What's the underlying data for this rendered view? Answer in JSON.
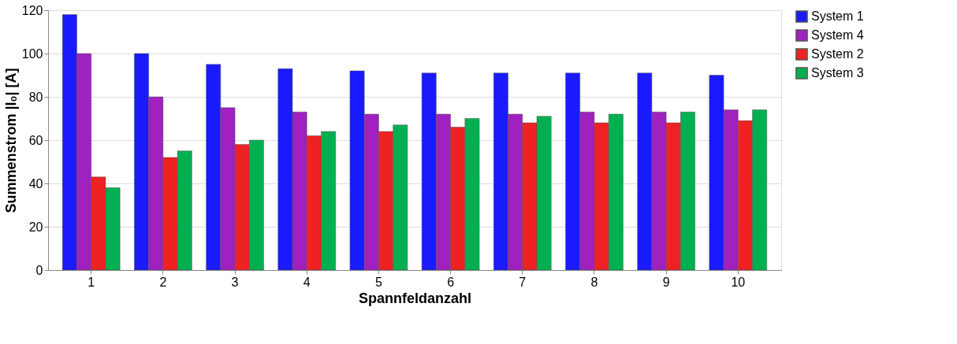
{
  "chart_data": {
    "type": "bar",
    "xlabel": "Spannfeldanzahl",
    "ylabel": "Summenstrom |I₀| [A]",
    "categories": [
      "1",
      "2",
      "3",
      "4",
      "5",
      "6",
      "7",
      "8",
      "9",
      "10"
    ],
    "series": [
      {
        "name": "System 1",
        "color": "#1a1aff",
        "values": [
          118,
          100,
          95,
          93,
          92,
          91,
          91,
          91,
          91,
          90
        ]
      },
      {
        "name": "System 4",
        "color": "#a020c0",
        "values": [
          100,
          80,
          75,
          73,
          72,
          72,
          72,
          73,
          73,
          74
        ]
      },
      {
        "name": "System 2",
        "color": "#ee2222",
        "values": [
          43,
          52,
          58,
          62,
          64,
          66,
          68,
          68,
          68,
          69
        ]
      },
      {
        "name": "System 3",
        "color": "#00b050",
        "values": [
          38,
          55,
          60,
          64,
          67,
          70,
          71,
          72,
          73,
          74
        ]
      }
    ],
    "ylim": [
      0,
      120
    ],
    "yticks": [
      0,
      20,
      40,
      60,
      80,
      100,
      120
    ],
    "grid": "y",
    "legend": "right"
  }
}
